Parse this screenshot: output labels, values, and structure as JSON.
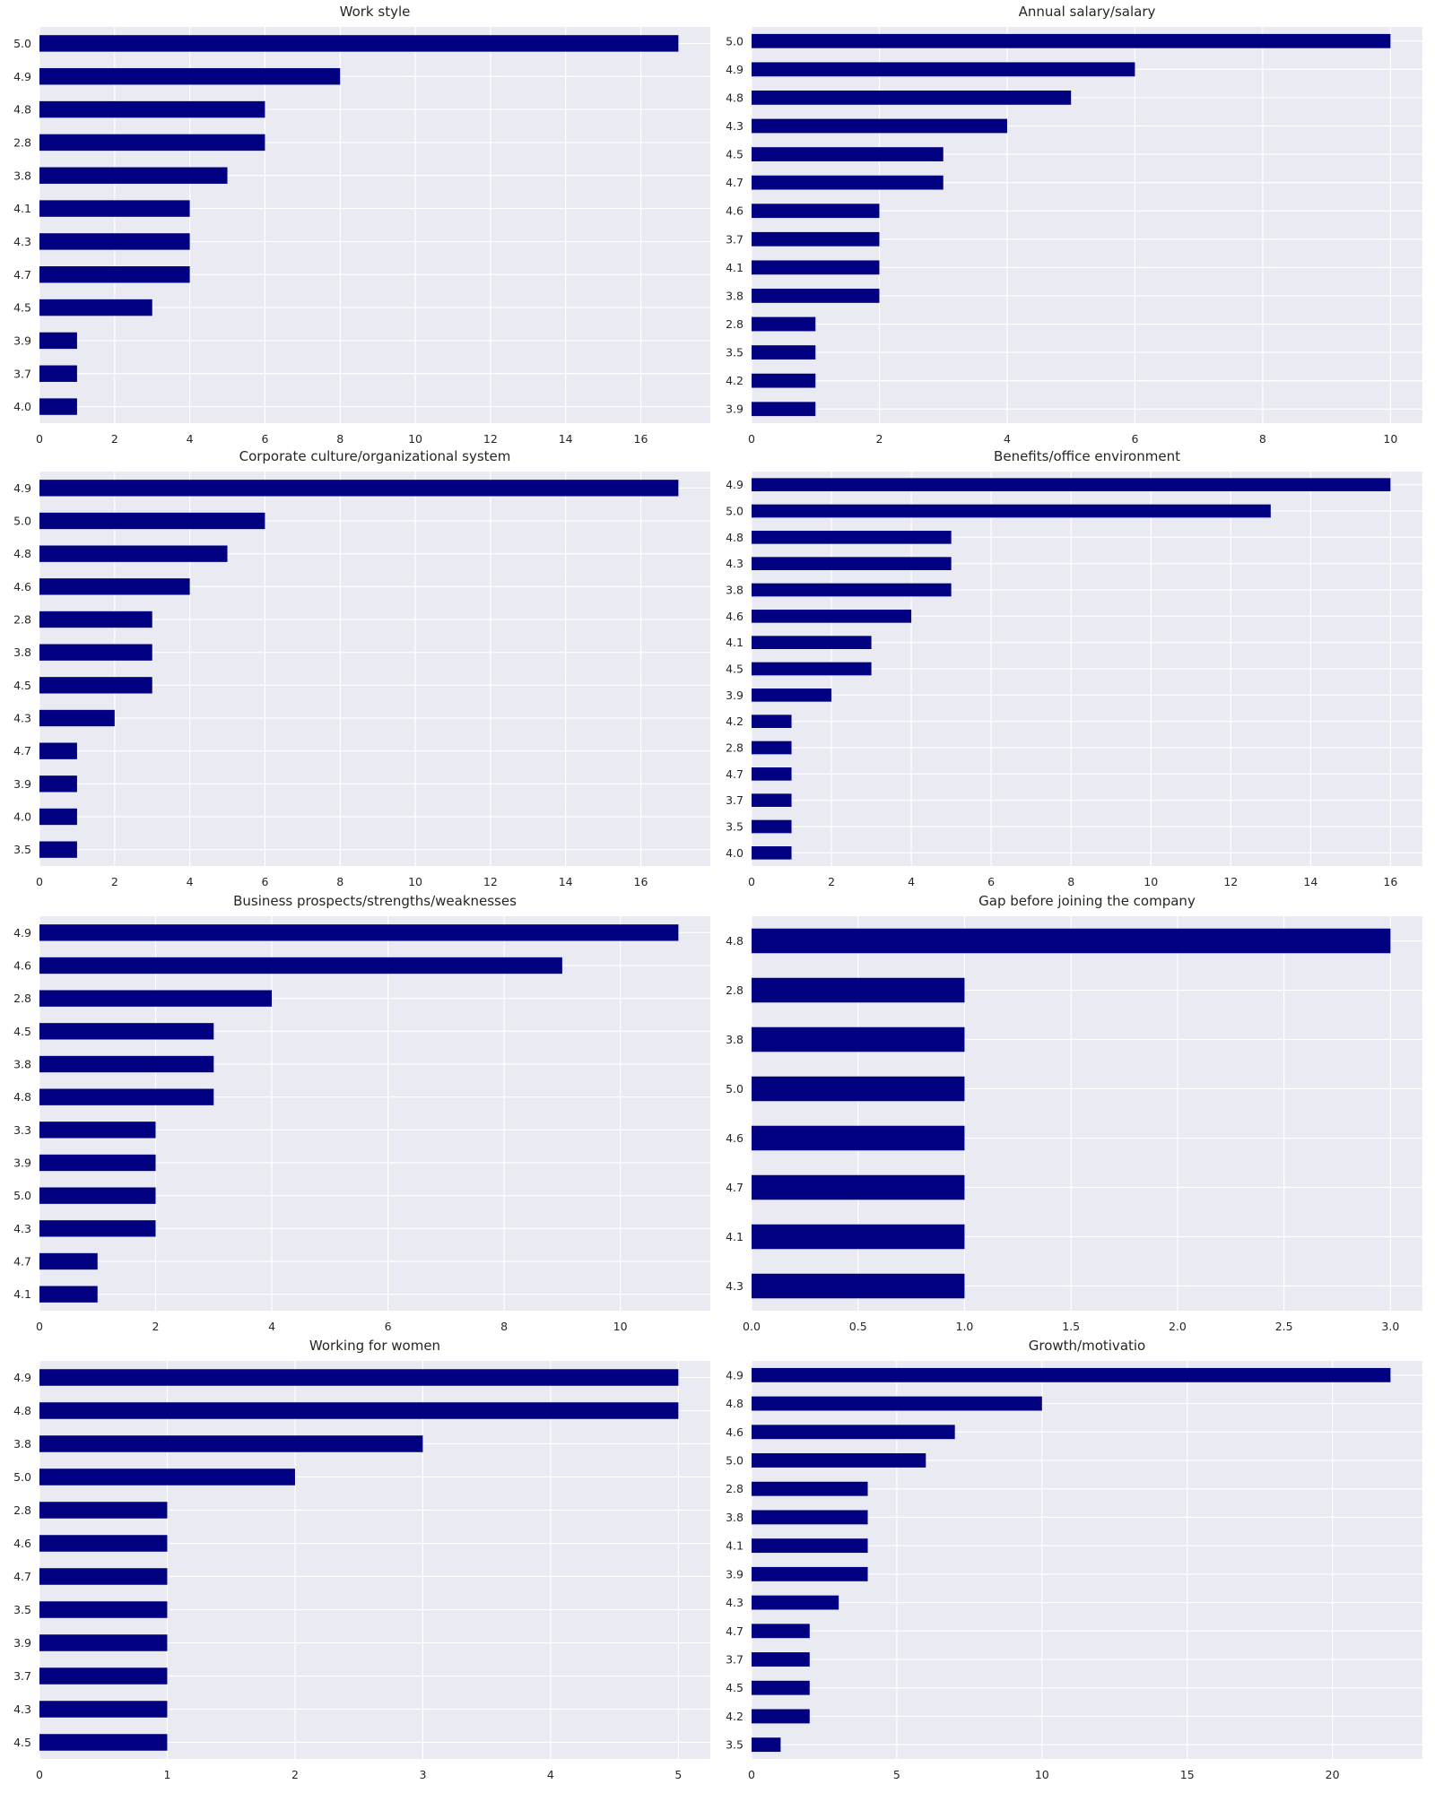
{
  "chart_data": [
    {
      "type": "bar",
      "orientation": "horizontal",
      "title": "Work style",
      "categories": [
        "5.0",
        "4.9",
        "4.8",
        "2.8",
        "3.8",
        "4.1",
        "4.3",
        "4.7",
        "4.5",
        "3.9",
        "3.7",
        "4.0"
      ],
      "values": [
        17,
        8,
        6,
        6,
        5,
        4,
        4,
        4,
        3,
        1,
        1,
        1
      ],
      "xticks": [
        0,
        2,
        4,
        6,
        8,
        10,
        12,
        14,
        16
      ],
      "xlim": [
        0,
        17.85
      ],
      "grid": true,
      "color": "#000080"
    },
    {
      "type": "bar",
      "orientation": "horizontal",
      "title": "Annual salary/salary",
      "categories": [
        "5.0",
        "4.9",
        "4.8",
        "4.3",
        "4.5",
        "4.7",
        "4.6",
        "3.7",
        "4.1",
        "3.8",
        "2.8",
        "3.5",
        "4.2",
        "3.9"
      ],
      "values": [
        10,
        6,
        5,
        4,
        3,
        3,
        2,
        2,
        2,
        2,
        1,
        1,
        1,
        1
      ],
      "xticks": [
        0,
        2,
        4,
        6,
        8,
        10
      ],
      "xlim": [
        0,
        10.5
      ],
      "grid": true,
      "color": "#000080"
    },
    {
      "type": "bar",
      "orientation": "horizontal",
      "title": "Corporate culture/organizational system",
      "categories": [
        "4.9",
        "5.0",
        "4.8",
        "4.6",
        "2.8",
        "3.8",
        "4.5",
        "4.3",
        "4.7",
        "3.9",
        "4.0",
        "3.5"
      ],
      "values": [
        17,
        6,
        5,
        4,
        3,
        3,
        3,
        2,
        1,
        1,
        1,
        1
      ],
      "xticks": [
        0,
        2,
        4,
        6,
        8,
        10,
        12,
        14,
        16
      ],
      "xlim": [
        0,
        17.85
      ],
      "grid": true,
      "color": "#000080"
    },
    {
      "type": "bar",
      "orientation": "horizontal",
      "title": "Benefits/office environment",
      "categories": [
        "4.9",
        "5.0",
        "4.8",
        "4.3",
        "3.8",
        "4.6",
        "4.1",
        "4.5",
        "3.9",
        "4.2",
        "2.8",
        "4.7",
        "3.7",
        "3.5",
        "4.0"
      ],
      "values": [
        16,
        13,
        5,
        5,
        5,
        4,
        3,
        3,
        2,
        1,
        1,
        1,
        1,
        1,
        1
      ],
      "xticks": [
        0,
        2,
        4,
        6,
        8,
        10,
        12,
        14,
        16
      ],
      "xlim": [
        0,
        16.8
      ],
      "grid": true,
      "color": "#000080"
    },
    {
      "type": "bar",
      "orientation": "horizontal",
      "title": "Business prospects/strengths/weaknesses",
      "categories": [
        "4.9",
        "4.6",
        "2.8",
        "4.5",
        "3.8",
        "4.8",
        "3.3",
        "3.9",
        "5.0",
        "4.3",
        "4.7",
        "4.1"
      ],
      "values": [
        11,
        9,
        4,
        3,
        3,
        3,
        2,
        2,
        2,
        2,
        1,
        1
      ],
      "xticks": [
        0,
        2,
        4,
        6,
        8,
        10
      ],
      "xlim": [
        0,
        11.55
      ],
      "grid": true,
      "color": "#000080"
    },
    {
      "type": "bar",
      "orientation": "horizontal",
      "title": "Gap before joining the company",
      "categories": [
        "4.8",
        "2.8",
        "3.8",
        "5.0",
        "4.6",
        "4.7",
        "4.1",
        "4.3"
      ],
      "values": [
        3,
        1,
        1,
        1,
        1,
        1,
        1,
        1
      ],
      "xticks": [
        0.0,
        0.5,
        1.0,
        1.5,
        2.0,
        2.5,
        3.0
      ],
      "xlim": [
        0,
        3.15
      ],
      "grid": true,
      "color": "#000080"
    },
    {
      "type": "bar",
      "orientation": "horizontal",
      "title": "Working for women",
      "categories": [
        "4.9",
        "4.8",
        "3.8",
        "5.0",
        "2.8",
        "4.6",
        "4.7",
        "3.5",
        "3.9",
        "3.7",
        "4.3",
        "4.5"
      ],
      "values": [
        5,
        5,
        3,
        2,
        1,
        1,
        1,
        1,
        1,
        1,
        1,
        1
      ],
      "xticks": [
        0,
        1,
        2,
        3,
        4,
        5
      ],
      "xlim": [
        0,
        5.25
      ],
      "grid": true,
      "color": "#000080"
    },
    {
      "type": "bar",
      "orientation": "horizontal",
      "title": "Growth/motivatio",
      "categories": [
        "4.9",
        "4.8",
        "4.6",
        "5.0",
        "2.8",
        "3.8",
        "4.1",
        "3.9",
        "4.3",
        "4.7",
        "3.7",
        "4.5",
        "4.2",
        "3.5"
      ],
      "values": [
        22,
        10,
        7,
        6,
        4,
        4,
        4,
        4,
        3,
        2,
        2,
        2,
        2,
        1
      ],
      "xticks": [
        0,
        5,
        10,
        15,
        20
      ],
      "xlim": [
        0,
        23.1
      ],
      "grid": true,
      "color": "#000080"
    }
  ]
}
